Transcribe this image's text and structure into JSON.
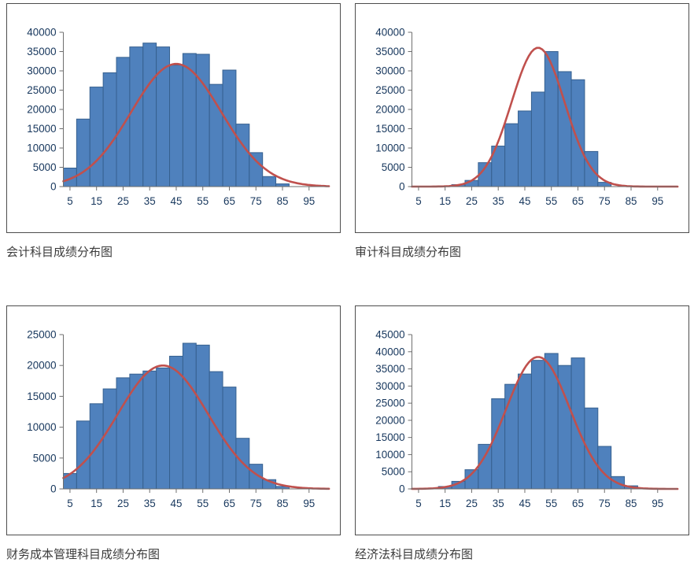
{
  "page": {
    "background": "#ffffff"
  },
  "chart_data": [
    {
      "type": "histogram",
      "title": "会计科目成绩分布图",
      "bin_width": 5,
      "bin_centers": [
        5,
        10,
        15,
        20,
        25,
        30,
        35,
        40,
        45,
        50,
        55,
        60,
        65,
        70,
        75,
        80,
        85
      ],
      "values": [
        4800,
        17500,
        25800,
        29500,
        33500,
        36200,
        37200,
        36200,
        31500,
        34500,
        34300,
        26500,
        30200,
        16200,
        8800,
        2600,
        700
      ],
      "curve": {
        "type": "normal",
        "peak": 31800,
        "mean": 45,
        "sd": 17,
        "color": "#c0504d"
      },
      "x_ticks": [
        5,
        15,
        25,
        35,
        45,
        55,
        65,
        75,
        85,
        95
      ],
      "xlim": [
        2.5,
        102.5
      ],
      "ylim": [
        0,
        40000
      ],
      "y_step": 5000,
      "bar_color": "#4f81bd",
      "bar_border": "#36608f",
      "grid": false,
      "legend": "none"
    },
    {
      "type": "histogram",
      "title": "审计科目成绩分布图",
      "bin_width": 5,
      "bin_centers": [
        20,
        25,
        30,
        35,
        40,
        45,
        50,
        55,
        60,
        65,
        70,
        75
      ],
      "values": [
        500,
        1600,
        6200,
        10500,
        16300,
        19600,
        24500,
        35000,
        29800,
        27700,
        9100,
        1100
      ],
      "curve": {
        "type": "normal",
        "peak": 36000,
        "mean": 50,
        "sd": 10,
        "color": "#c0504d"
      },
      "x_ticks": [
        5,
        15,
        25,
        35,
        45,
        55,
        65,
        75,
        85,
        95
      ],
      "xlim": [
        2.5,
        102.5
      ],
      "ylim": [
        0,
        40000
      ],
      "y_step": 5000,
      "bar_color": "#4f81bd",
      "bar_border": "#36608f",
      "grid": false,
      "legend": "none"
    },
    {
      "type": "histogram",
      "title": "财务成本管理科目成绩分布图",
      "bin_width": 5,
      "bin_centers": [
        5,
        10,
        15,
        20,
        25,
        30,
        35,
        40,
        45,
        50,
        55,
        60,
        65,
        70,
        75,
        80,
        85
      ],
      "values": [
        2500,
        11000,
        13800,
        16200,
        18000,
        18600,
        19100,
        19600,
        21500,
        23600,
        23300,
        19000,
        16500,
        8200,
        4000,
        1500,
        400
      ],
      "curve": {
        "type": "normal",
        "peak": 20000,
        "mean": 40,
        "sd": 17,
        "color": "#c0504d"
      },
      "x_ticks": [
        5,
        15,
        25,
        35,
        45,
        55,
        65,
        75,
        85,
        95
      ],
      "xlim": [
        2.5,
        102.5
      ],
      "ylim": [
        0,
        25000
      ],
      "y_step": 5000,
      "bar_color": "#4f81bd",
      "bar_border": "#36608f",
      "grid": false,
      "legend": "none"
    },
    {
      "type": "histogram",
      "title": "经济法科目成绩分布图",
      "bin_width": 5,
      "bin_centers": [
        15,
        20,
        25,
        30,
        35,
        40,
        45,
        50,
        55,
        60,
        65,
        70,
        75,
        80,
        85
      ],
      "values": [
        700,
        2200,
        5600,
        13000,
        26300,
        30500,
        33500,
        37500,
        39500,
        36000,
        38200,
        23600,
        12400,
        3600,
        900
      ],
      "curve": {
        "type": "normal",
        "peak": 38500,
        "mean": 50,
        "sd": 12,
        "color": "#c0504d"
      },
      "x_ticks": [
        5,
        15,
        25,
        35,
        45,
        55,
        65,
        75,
        85,
        95
      ],
      "xlim": [
        2.5,
        102.5
      ],
      "ylim": [
        0,
        45000
      ],
      "y_step": 5000,
      "bar_color": "#4f81bd",
      "bar_border": "#36608f",
      "grid": false,
      "legend": "none"
    }
  ]
}
